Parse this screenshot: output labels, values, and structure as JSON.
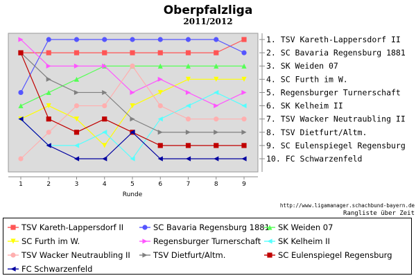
{
  "chart_data": {
    "type": "line",
    "title": "Oberpfalzliga",
    "subtitle": "2011/2012",
    "xlabel": "Runde",
    "ylabel": "",
    "x": [
      1,
      2,
      3,
      4,
      5,
      6,
      7,
      8,
      9
    ],
    "ylim": [
      1,
      10
    ],
    "y_inverted": true,
    "grid": false,
    "plot_background": "#dcdcdc",
    "rank_labels": [
      "1.  TSV Kareth-Lappersdorf II",
      "2.  SC Bavaria Regensburg 1881",
      "3.  SK Weiden 07",
      "4.  SC Furth im W.",
      "5.  Regensburger Turnerschaft",
      "6.  SK Kelheim II",
      "7.  TSV Wacker Neutraubling II",
      "8.  TSV Dietfurt/Altm.",
      "9.  SC Eulenspiegel Regensburg",
      "10. FC Schwarzenfeld"
    ],
    "footer_url": "http://www.ligamanager.schachbund-bayern.de",
    "footer_note": "Rangliste über Zeit",
    "legend_position": "bottom",
    "series": [
      {
        "name": "TSV Kareth-Lappersdorf II",
        "color": "#ff5555",
        "marker": "square",
        "values": [
          2,
          2,
          2,
          2,
          2,
          2,
          2,
          2,
          1
        ]
      },
      {
        "name": "SC Bavaria Regensburg 1881",
        "color": "#5555ff",
        "marker": "circle",
        "values": [
          5,
          1,
          1,
          1,
          1,
          1,
          1,
          1,
          2
        ]
      },
      {
        "name": "SK Weiden 07",
        "color": "#55ff55",
        "marker": "triangle-up",
        "values": [
          6,
          5,
          4,
          3,
          3,
          3,
          3,
          3,
          3
        ]
      },
      {
        "name": "SC Furth im W.",
        "color": "#ffff00",
        "marker": "triangle-down",
        "values": [
          7,
          6,
          7,
          9,
          6,
          5,
          4,
          4,
          4
        ]
      },
      {
        "name": "Regensburger Turnerschaft",
        "color": "#ff55ff",
        "marker": "triangle-right",
        "values": [
          1,
          3,
          3,
          3,
          5,
          4,
          5,
          6,
          5
        ]
      },
      {
        "name": "SK Kelheim II",
        "color": "#55ffff",
        "marker": "triangle-left",
        "values": [
          7,
          9,
          9,
          8,
          10,
          7,
          6,
          5,
          6
        ]
      },
      {
        "name": "TSV Wacker Neutraubling II",
        "color": "#ffafaf",
        "marker": "circle",
        "values": [
          10,
          8,
          6,
          6,
          3,
          6,
          7,
          7,
          7
        ]
      },
      {
        "name": "TSV Dietfurt/Altm.",
        "color": "#808080",
        "marker": "triangle-right",
        "values": [
          2,
          4,
          5,
          5,
          7,
          8,
          8,
          8,
          8
        ]
      },
      {
        "name": "SC Eulenspiegel Regensburg",
        "color": "#c00000",
        "marker": "square",
        "values": [
          2,
          7,
          8,
          7,
          8,
          9,
          9,
          9,
          9
        ]
      },
      {
        "name": "FC Schwarzenfeld",
        "color": "#0000a0",
        "marker": "triangle-left",
        "values": [
          7,
          9,
          10,
          10,
          8,
          10,
          10,
          10,
          10
        ]
      }
    ]
  }
}
